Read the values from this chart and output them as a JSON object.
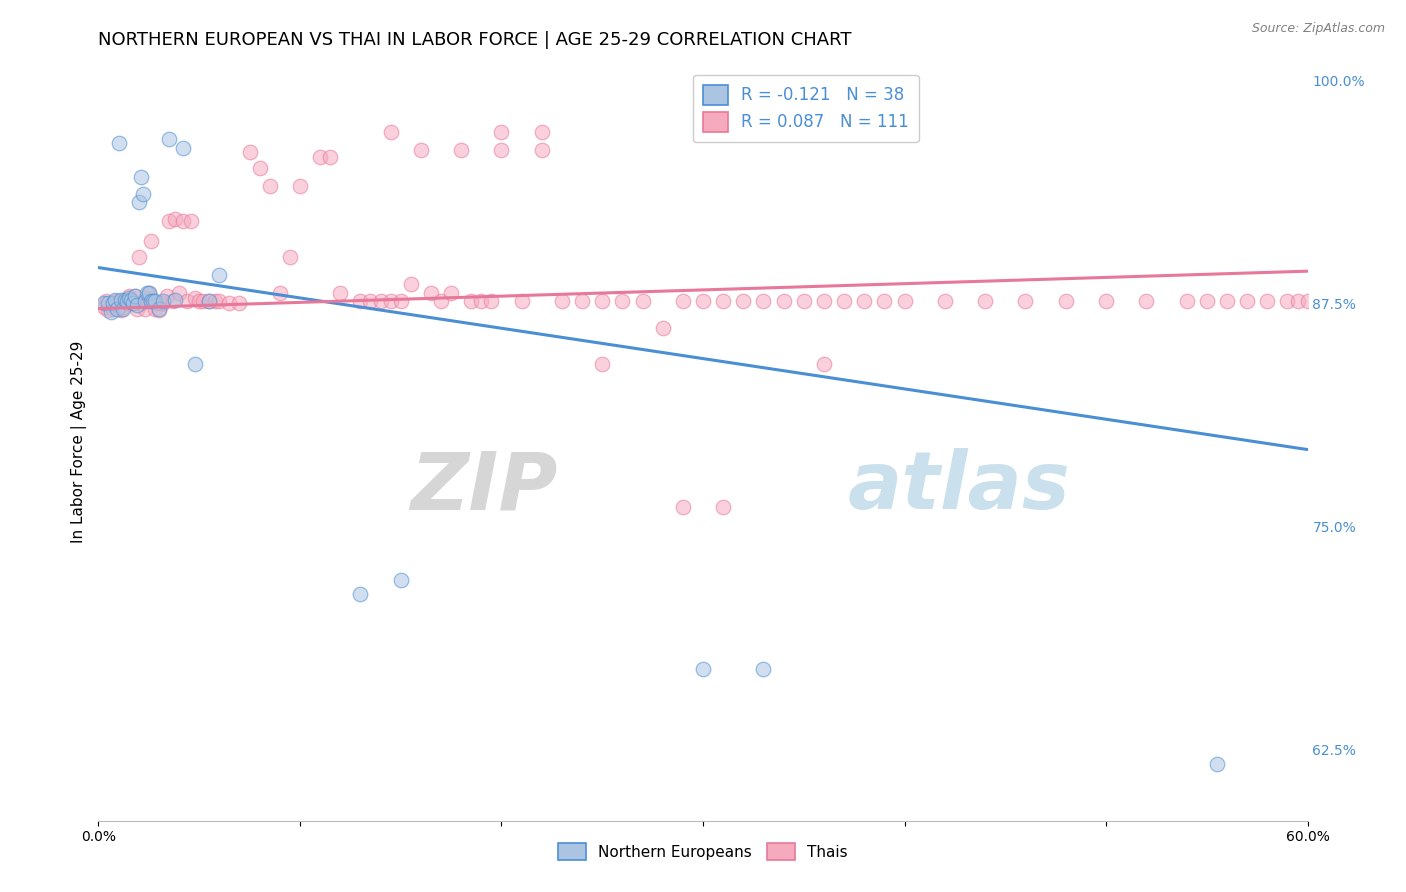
{
  "title": "NORTHERN EUROPEAN VS THAI IN LABOR FORCE | AGE 25-29 CORRELATION CHART",
  "source": "Source: ZipAtlas.com",
  "ylabel": "In Labor Force | Age 25-29",
  "xlim": [
    0.0,
    0.6
  ],
  "ylim": [
    0.585,
    1.01
  ],
  "xticks": [
    0.0,
    0.1,
    0.2,
    0.3,
    0.4,
    0.5,
    0.6
  ],
  "xtick_labels": [
    "0.0%",
    "",
    "",
    "",
    "",
    "",
    "60.0%"
  ],
  "yticks_right": [
    0.625,
    0.75,
    0.875,
    1.0
  ],
  "ytick_labels_right": [
    "62.5%",
    "75.0%",
    "87.5%",
    "100.0%"
  ],
  "legend_entries": [
    {
      "label": "R = -0.121   N = 38",
      "color": "#aac4e2"
    },
    {
      "label": "R = 0.087   N = 111",
      "color": "#f5aabe"
    }
  ],
  "legend_bottom": [
    {
      "label": "Northern Europeans",
      "color": "#aac4e2"
    },
    {
      "label": "Thais",
      "color": "#f5aabe"
    }
  ],
  "blue_scatter_x": [
    0.003,
    0.005,
    0.006,
    0.007,
    0.008,
    0.009,
    0.01,
    0.011,
    0.012,
    0.013,
    0.014,
    0.015,
    0.016,
    0.017,
    0.018,
    0.019,
    0.02,
    0.021,
    0.022,
    0.023,
    0.024,
    0.025,
    0.026,
    0.027,
    0.028,
    0.03,
    0.032,
    0.035,
    0.038,
    0.042,
    0.048,
    0.055,
    0.06,
    0.13,
    0.15,
    0.3,
    0.33,
    0.555
  ],
  "blue_scatter_y": [
    0.875,
    0.875,
    0.87,
    0.875,
    0.877,
    0.872,
    0.965,
    0.877,
    0.872,
    0.877,
    0.876,
    0.878,
    0.877,
    0.875,
    0.879,
    0.874,
    0.932,
    0.946,
    0.936,
    0.876,
    0.881,
    0.881,
    0.876,
    0.876,
    0.876,
    0.872,
    0.876,
    0.967,
    0.877,
    0.962,
    0.841,
    0.876,
    0.891,
    0.712,
    0.72,
    0.67,
    0.67,
    0.617
  ],
  "pink_scatter_x": [
    0.003,
    0.004,
    0.005,
    0.006,
    0.007,
    0.008,
    0.009,
    0.01,
    0.011,
    0.012,
    0.013,
    0.014,
    0.015,
    0.016,
    0.017,
    0.018,
    0.019,
    0.02,
    0.021,
    0.022,
    0.023,
    0.024,
    0.025,
    0.026,
    0.027,
    0.028,
    0.029,
    0.03,
    0.031,
    0.032,
    0.034,
    0.035,
    0.037,
    0.038,
    0.04,
    0.042,
    0.044,
    0.046,
    0.048,
    0.05,
    0.052,
    0.055,
    0.058,
    0.06,
    0.065,
    0.07,
    0.075,
    0.08,
    0.085,
    0.09,
    0.095,
    0.1,
    0.11,
    0.115,
    0.12,
    0.13,
    0.135,
    0.14,
    0.145,
    0.15,
    0.155,
    0.16,
    0.165,
    0.17,
    0.175,
    0.18,
    0.185,
    0.19,
    0.195,
    0.2,
    0.21,
    0.22,
    0.23,
    0.24,
    0.25,
    0.26,
    0.27,
    0.28,
    0.29,
    0.3,
    0.31,
    0.32,
    0.33,
    0.34,
    0.35,
    0.36,
    0.37,
    0.38,
    0.39,
    0.4,
    0.42,
    0.44,
    0.46,
    0.48,
    0.5,
    0.52,
    0.54,
    0.55,
    0.56,
    0.57,
    0.58,
    0.59,
    0.595,
    0.6,
    0.145,
    0.2,
    0.22,
    0.25,
    0.29,
    0.31,
    0.36
  ],
  "pink_scatter_y": [
    0.873,
    0.876,
    0.871,
    0.874,
    0.872,
    0.876,
    0.875,
    0.876,
    0.871,
    0.873,
    0.876,
    0.875,
    0.879,
    0.876,
    0.875,
    0.879,
    0.872,
    0.901,
    0.875,
    0.876,
    0.872,
    0.878,
    0.881,
    0.91,
    0.876,
    0.872,
    0.875,
    0.871,
    0.875,
    0.875,
    0.879,
    0.921,
    0.876,
    0.922,
    0.881,
    0.921,
    0.876,
    0.921,
    0.878,
    0.876,
    0.876,
    0.876,
    0.876,
    0.876,
    0.875,
    0.875,
    0.96,
    0.951,
    0.941,
    0.881,
    0.901,
    0.941,
    0.957,
    0.957,
    0.881,
    0.876,
    0.876,
    0.876,
    0.876,
    0.876,
    0.886,
    0.961,
    0.881,
    0.876,
    0.881,
    0.961,
    0.876,
    0.876,
    0.876,
    0.961,
    0.876,
    0.961,
    0.876,
    0.876,
    0.876,
    0.876,
    0.876,
    0.861,
    0.876,
    0.876,
    0.876,
    0.876,
    0.876,
    0.876,
    0.876,
    0.876,
    0.876,
    0.876,
    0.876,
    0.876,
    0.876,
    0.876,
    0.876,
    0.876,
    0.876,
    0.876,
    0.876,
    0.876,
    0.876,
    0.876,
    0.876,
    0.876,
    0.876,
    0.876,
    0.971,
    0.971,
    0.971,
    0.841,
    0.761,
    0.761,
    0.841
  ],
  "blue_line_x": [
    0.0,
    0.6
  ],
  "blue_line_y": [
    0.895,
    0.793
  ],
  "pink_line_x": [
    0.0,
    0.6
  ],
  "pink_line_y": [
    0.872,
    0.893
  ],
  "blue_color": "#4a8fd4",
  "pink_color": "#e8789a",
  "blue_fill": "#aac4e2",
  "pink_fill": "#f5aabe",
  "marker_size": 110,
  "marker_alpha": 0.55,
  "line_width": 2.2,
  "grid_color": "#c8c8c8",
  "background_color": "#ffffff",
  "watermark_zip": "ZIP",
  "watermark_atlas": "atlas",
  "title_fontsize": 13,
  "axis_label_fontsize": 11,
  "tick_fontsize": 10,
  "source_fontsize": 9
}
